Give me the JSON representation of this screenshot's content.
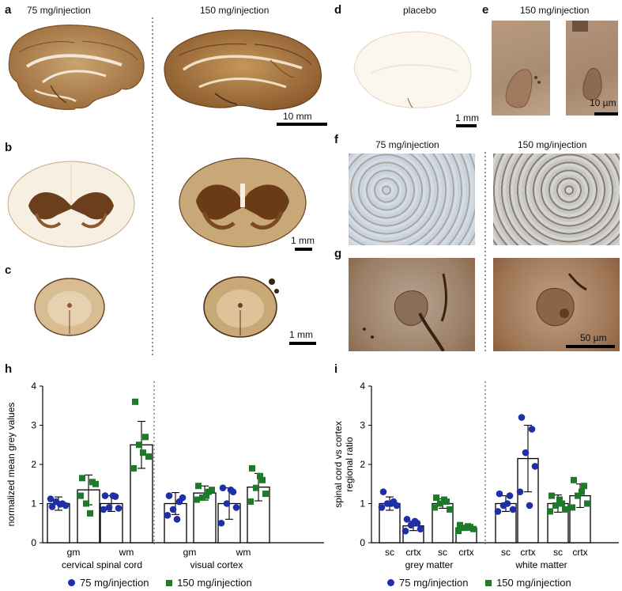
{
  "panels": {
    "a": "a",
    "b": "b",
    "c": "c",
    "d": "d",
    "e": "e",
    "f": "f",
    "g": "g",
    "h": "h",
    "i": "i"
  },
  "headers": {
    "left_75": "75 mg/injection",
    "left_150": "150 mg/injection",
    "placebo": "placebo",
    "e_150": "150 mg/injection",
    "f_75": "75 mg/injection",
    "f_150": "150 mg/injection"
  },
  "scalebars": {
    "a": "10 mm",
    "b": "1 mm",
    "c": "1 mm",
    "d": "1 mm",
    "e": "10 µm",
    "g": "50 µm"
  },
  "colors": {
    "series_75": "#1f2fa8",
    "series_150": "#1c7a2a",
    "stain_dark": "#6b4323",
    "stain_light": "#d8c3a2"
  },
  "legend": {
    "s75": "75 mg/injection",
    "s150": "150 mg/injection"
  },
  "chart_data": [
    {
      "type": "bar",
      "panel": "h",
      "ylabel": "normalized mean grey values",
      "ylim": [
        0,
        4
      ],
      "yticks": [
        "0",
        "1",
        "2",
        "3",
        "4"
      ],
      "tick_labels": [
        "gm",
        "wm",
        "gm",
        "wm"
      ],
      "group_labels": [
        "cervical spinal cord",
        "visual cortex"
      ],
      "bars": [
        {
          "series": "75 mg/injection",
          "mean": 1.0,
          "sd": 0.17,
          "points": [
            0.92,
            1.0,
            1.05,
            0.95,
            1.12,
            0.98
          ]
        },
        {
          "series": "150 mg/injection",
          "mean": 1.35,
          "sd": 0.38,
          "points": [
            1.65,
            1.55,
            1.0,
            1.5,
            1.2,
            0.75
          ]
        },
        {
          "series": "75 mg/injection",
          "mean": 1.0,
          "sd": 0.2,
          "points": [
            1.2,
            1.18,
            0.9,
            0.88,
            0.85,
            1.2
          ]
        },
        {
          "series": "150 mg/injection",
          "mean": 2.5,
          "sd": 0.6,
          "points": [
            3.6,
            2.7,
            2.5,
            2.2,
            1.9,
            2.3
          ]
        },
        {
          "series": "75 mg/injection",
          "mean": 1.0,
          "sd": 0.28,
          "points": [
            1.2,
            1.05,
            0.85,
            1.15,
            0.7,
            0.6
          ]
        },
        {
          "series": "150 mg/injection",
          "mean": 1.27,
          "sd": 0.18,
          "points": [
            1.45,
            1.3,
            1.15,
            1.35,
            1.1,
            1.2
          ]
        },
        {
          "series": "75 mg/injection",
          "mean": 1.0,
          "sd": 0.4,
          "points": [
            1.4,
            1.3,
            1.0,
            0.9,
            0.5,
            1.35
          ]
        },
        {
          "series": "150 mg/injection",
          "mean": 1.42,
          "sd": 0.35,
          "points": [
            1.9,
            1.6,
            1.4,
            1.25,
            1.05,
            1.7
          ]
        }
      ]
    },
    {
      "type": "bar",
      "panel": "i",
      "ylabel": "spinal cord vs cortex\nregional ratio",
      "ylim": [
        0,
        4
      ],
      "yticks": [
        "0",
        "1",
        "2",
        "3",
        "4"
      ],
      "tick_labels": [
        "sc",
        "crtx",
        "sc",
        "crtx",
        "sc",
        "crtx",
        "sc",
        "crtx"
      ],
      "group_labels": [
        "grey matter",
        "white matter"
      ],
      "bars": [
        {
          "series": "75 mg/injection",
          "mean": 1.0,
          "sd": 0.17,
          "points": [
            1.3,
            1.05,
            1.0,
            0.95,
            0.9,
            1.0
          ]
        },
        {
          "series": "75 mg/injection",
          "mean": 0.43,
          "sd": 0.12,
          "points": [
            0.6,
            0.5,
            0.45,
            0.35,
            0.3,
            0.55
          ]
        },
        {
          "series": "150 mg/injection",
          "mean": 1.0,
          "sd": 0.12,
          "points": [
            1.15,
            1.05,
            1.0,
            0.85,
            0.9,
            1.1
          ]
        },
        {
          "series": "150 mg/injection",
          "mean": 0.38,
          "sd": 0.06,
          "points": [
            0.45,
            0.4,
            0.38,
            0.35,
            0.3,
            0.42
          ]
        },
        {
          "series": "75 mg/injection",
          "mean": 1.0,
          "sd": 0.2,
          "points": [
            1.25,
            1.2,
            0.95,
            0.85,
            0.8,
            1.0
          ]
        },
        {
          "series": "75 mg/injection",
          "mean": 2.15,
          "sd": 0.85,
          "points": [
            3.2,
            2.9,
            2.3,
            1.95,
            1.3,
            0.95
          ]
        },
        {
          "series": "150 mg/injection",
          "mean": 1.0,
          "sd": 0.22,
          "points": [
            1.2,
            1.0,
            0.95,
            0.85,
            0.8,
            1.1
          ]
        },
        {
          "series": "150 mg/injection",
          "mean": 1.2,
          "sd": 0.3,
          "points": [
            1.6,
            1.45,
            1.2,
            1.0,
            0.9,
            1.3
          ]
        }
      ]
    }
  ]
}
